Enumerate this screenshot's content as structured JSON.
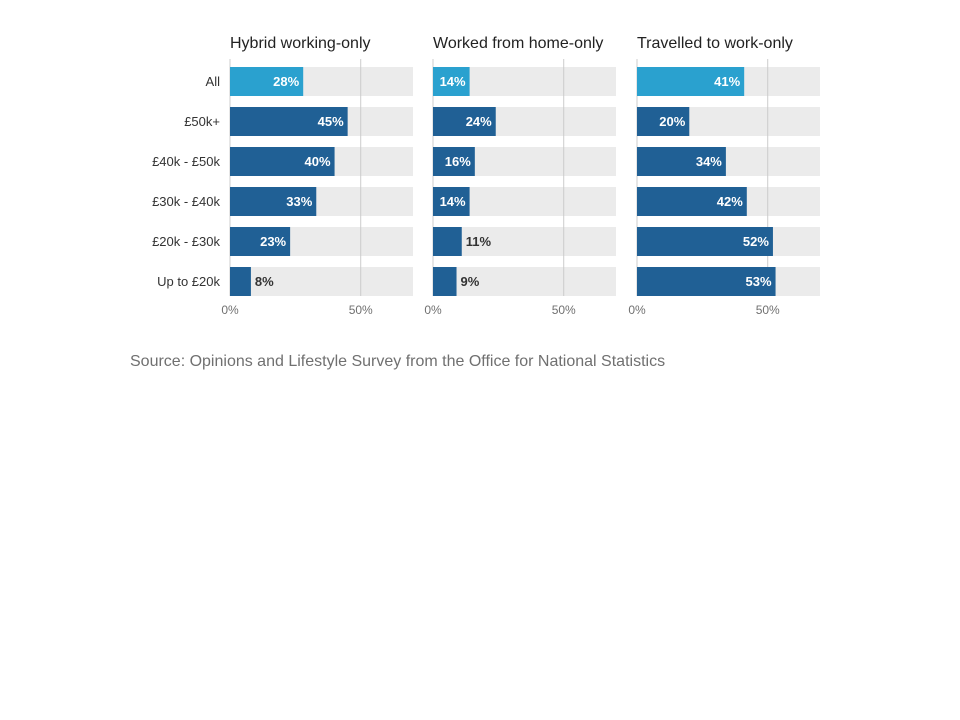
{
  "chart_data": {
    "type": "bar",
    "orientation": "horizontal",
    "categories": [
      "All",
      "£50k+",
      "£40k - £50k",
      "£30k - £40k",
      "£20k - £30k",
      "Up to £20k"
    ],
    "xlim": [
      0,
      70
    ],
    "xticks": [
      0,
      50
    ],
    "xtick_labels": [
      "0%",
      "50%"
    ],
    "grid": true,
    "panels": [
      {
        "title": "Hybrid working-only",
        "values": [
          28,
          45,
          40,
          33,
          23,
          8
        ],
        "labels": [
          "28%",
          "45%",
          "40%",
          "33%",
          "23%",
          "8%"
        ]
      },
      {
        "title": "Worked from home-only",
        "values": [
          14,
          24,
          16,
          14,
          11,
          9
        ],
        "labels": [
          "14%",
          "24%",
          "16%",
          "14%",
          "11%",
          "9%"
        ]
      },
      {
        "title": "Travelled to work-only",
        "values": [
          41,
          20,
          34,
          42,
          52,
          53
        ],
        "labels": [
          "41%",
          "20%",
          "34%",
          "42%",
          "52%",
          "53%"
        ]
      }
    ]
  },
  "colors": {
    "highlight_bar": "#2aa1cf",
    "bar": "#206095",
    "background_bar": "#ebebeb",
    "grid": "#cccccc"
  },
  "source": "Source: Opinions and Lifestyle Survey from the Office for National Statistics"
}
